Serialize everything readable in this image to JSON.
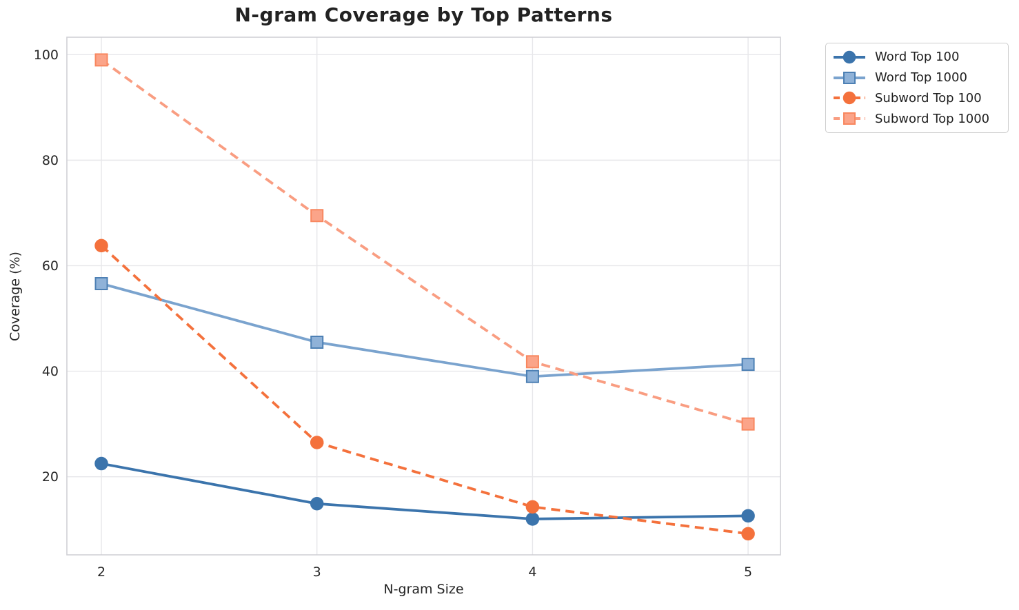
{
  "chart_data": {
    "type": "line",
    "title": "N-gram Coverage by Top Patterns",
    "xlabel": "N-gram Size",
    "ylabel": "Coverage (%)",
    "x": [
      2,
      3,
      4,
      5
    ],
    "xtick_labels": [
      "2",
      "3",
      "4",
      "5"
    ],
    "yticks": [
      20,
      40,
      60,
      80,
      100
    ],
    "xlim": [
      1.84,
      5.15
    ],
    "ylim": [
      5.2,
      103.3
    ],
    "grid": true,
    "legend_position": "outside upper right",
    "series": [
      {
        "name": "Word Top 100",
        "marker": "circle",
        "line_style": "solid",
        "color": "#3b74ac",
        "marker_face": "#3b74ac",
        "marker_edge": "#3b74ac",
        "values": [
          22.5,
          14.9,
          12.0,
          12.6
        ]
      },
      {
        "name": "Word Top 1000",
        "marker": "square",
        "line_style": "solid",
        "color": "#7aa3ce",
        "marker_face": "#8fb2d8",
        "marker_edge": "#4d80b4",
        "values": [
          56.6,
          45.5,
          39.0,
          41.3
        ]
      },
      {
        "name": "Subword Top 100",
        "marker": "circle",
        "line_style": "dashed",
        "color": "#f4713c",
        "marker_face": "#f4713c",
        "marker_edge": "#f4713c",
        "values": [
          63.8,
          26.5,
          14.3,
          9.2
        ]
      },
      {
        "name": "Subword Top 1000",
        "marker": "square",
        "line_style": "dashed",
        "color": "#f99d81",
        "marker_face": "#fba489",
        "marker_edge": "#f8875f",
        "values": [
          99.0,
          69.5,
          41.8,
          30.0
        ]
      }
    ],
    "colors": {
      "grid": "#e7e7ea",
      "spine": "#d0d0d5",
      "tick_text": "#262626"
    }
  }
}
